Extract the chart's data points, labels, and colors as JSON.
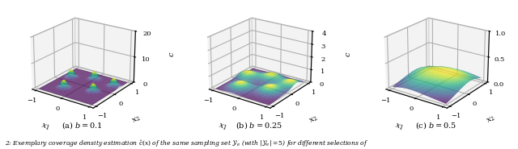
{
  "sample_points": [
    [
      -0.7,
      0.3
    ],
    [
      -0.4,
      -0.5
    ],
    [
      0.0,
      0.6
    ],
    [
      0.5,
      -0.2
    ],
    [
      0.8,
      0.5
    ]
  ],
  "bandwidths": [
    0.1,
    0.25,
    0.5
  ],
  "labels": [
    "(a) $b = 0.1$",
    "(b) $b = 0.25$",
    "(c) $b = 0.5$"
  ],
  "xlabel": "$x_1$",
  "ylabel": "$x_2$",
  "zlabel": "$c$",
  "xlim": [
    -1,
    1
  ],
  "ylim": [
    -1,
    1
  ],
  "grid_n": 80,
  "elev": 22,
  "azim": -55,
  "cmap": "viridis",
  "figsize": [
    6.4,
    1.85
  ],
  "dpi": 100,
  "background_color": "#ffffff",
  "pane_color": "#e8e8e8",
  "pane_edge_color": "#aaaaaa",
  "zticks_0": [
    0,
    10,
    20
  ],
  "zticks_1": [
    0,
    1,
    2,
    3,
    4
  ],
  "zticks_2": [
    0.0,
    0.5,
    1.0
  ],
  "caption": "2: Exemplary coverage density estimation $\\hat{c}(x)$ of the same sampling set $\\mathcal{Y}_e$ (with $|\\mathcal{Y}_e| = 5$) for different selections of"
}
